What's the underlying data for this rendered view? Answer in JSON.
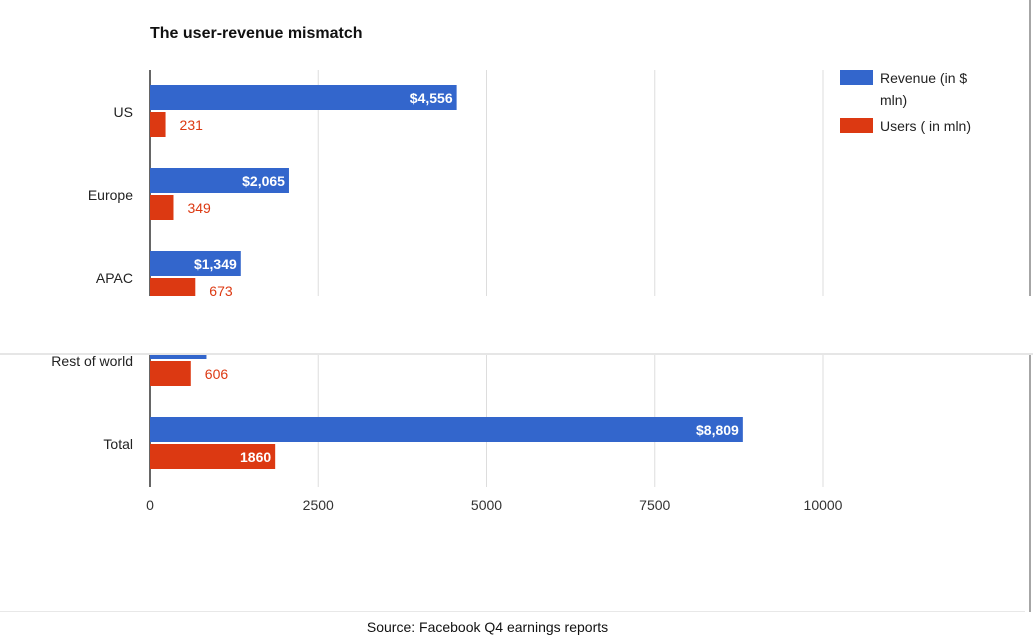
{
  "chart_data": {
    "type": "bar",
    "orientation": "horizontal",
    "title": "The user-revenue mismatch",
    "categories": [
      "US",
      "Europe",
      "APAC",
      "Rest of world",
      "Total"
    ],
    "series": [
      {
        "name": "Revenue (in $ mln)",
        "legend_lines": [
          "Revenue (in $",
          "mln)"
        ],
        "color": "#3366cc",
        "values": [
          4556,
          2065,
          1349,
          839,
          8809
        ],
        "labels": [
          "$4,556",
          "$2,065",
          "$1,349",
          null,
          "$8,809"
        ]
      },
      {
        "name": "Users ( in mln)",
        "legend_lines": [
          "Users ( in mln)"
        ],
        "color": "#dc3912",
        "values": [
          231,
          349,
          673,
          606,
          1860
        ],
        "labels": [
          "231",
          "349",
          "673",
          "606",
          "1860"
        ]
      }
    ],
    "xlim": [
      0,
      12500
    ],
    "xticks": [
      "0",
      "2500",
      "5000",
      "7500",
      "10000"
    ],
    "xtick_values": [
      0,
      2500,
      5000,
      7500,
      10000
    ],
    "grid": true,
    "legend": "top-right"
  },
  "footer": {
    "source": "Source: Facebook Q4 earnings reports"
  }
}
